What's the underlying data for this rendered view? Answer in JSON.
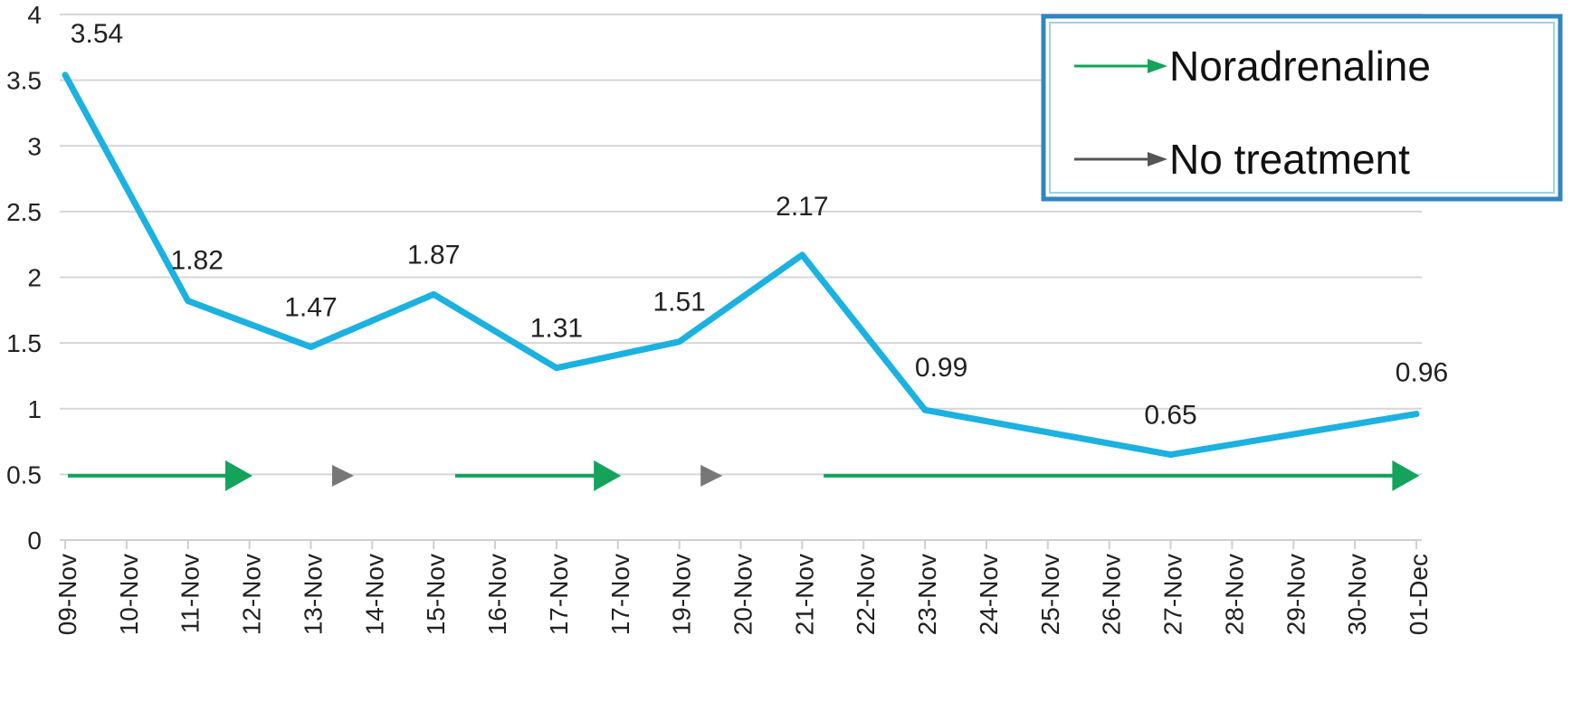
{
  "chart_data": {
    "type": "line",
    "categories": [
      "09-Nov",
      "10-Nov",
      "11-Nov",
      "12-Nov",
      "13-Nov",
      "14-Nov",
      "15-Nov",
      "16-Nov",
      "17-Nov",
      "17-Nov",
      "19-Nov",
      "20-Nov",
      "21-Nov",
      "22-Nov",
      "23-Nov",
      "24-Nov",
      "25-Nov",
      "26-Nov",
      "27-Nov",
      "28-Nov",
      "29-Nov",
      "30-Nov",
      "01-Dec"
    ],
    "series": [
      {
        "values": [
          3.54,
          null,
          1.82,
          null,
          1.47,
          null,
          1.87,
          null,
          1.31,
          null,
          1.51,
          null,
          2.17,
          null,
          0.99,
          null,
          null,
          null,
          0.65,
          null,
          null,
          null,
          0.96
        ],
        "data_labels": [
          "3.54",
          null,
          "1.82",
          null,
          "1.47",
          null,
          "1.87",
          null,
          "1.31",
          null,
          "1.51",
          null,
          "2.17",
          null,
          "0.99",
          null,
          null,
          null,
          "0.65",
          null,
          null,
          null,
          "0.96"
        ],
        "color": "#1bb1e0"
      }
    ],
    "yticks": [
      "0",
      "0.5",
      "1",
      "1.5",
      "2",
      "2.5",
      "3",
      "3.5",
      "4"
    ],
    "ylim": [
      0,
      4
    ],
    "grid": true,
    "treatment_arrows": [
      {
        "treatment": "Noradrenaline",
        "from": "09-Nov",
        "to": "12-Nov",
        "color": "#13a35a"
      },
      {
        "treatment": "No treatment",
        "from": "13-Nov",
        "to": "14-Nov",
        "color": "#777777"
      },
      {
        "treatment": "Noradrenaline",
        "from": "15-Nov",
        "to": "17-Nov",
        "color": "#13a35a"
      },
      {
        "treatment": "No treatment",
        "from": "19-Nov",
        "to": "20-Nov",
        "color": "#777777"
      },
      {
        "treatment": "Noradrenaline",
        "from": "21-Nov",
        "to": "01-Dec",
        "color": "#13a35a"
      }
    ],
    "legend": {
      "placement": "top-right",
      "entries": [
        {
          "label": "Noradrenaline",
          "color": "#13a35a"
        },
        {
          "label": "No treatment",
          "color": "#555555"
        }
      ],
      "border_color": "#2f86c0"
    }
  }
}
